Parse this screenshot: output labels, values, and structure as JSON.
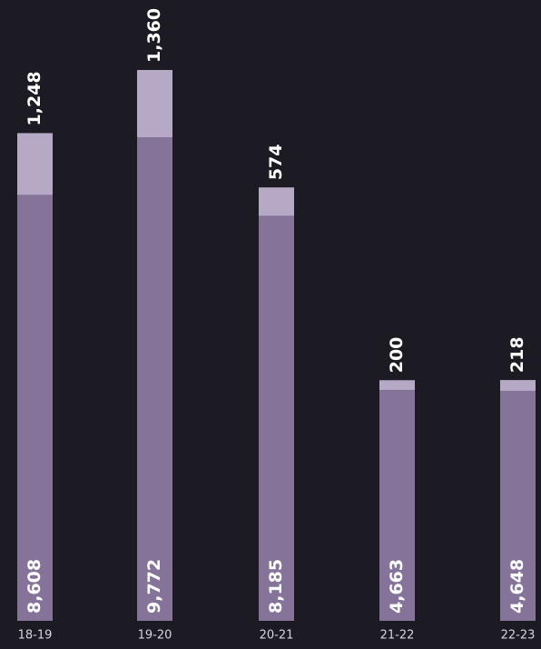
{
  "chart_data": {
    "type": "stacked-bar",
    "categories": [
      "18-19",
      "19-20",
      "20-21",
      "21-22",
      "22-23"
    ],
    "series": [
      {
        "color": "#85739a",
        "values": [
          8608,
          9772,
          8185,
          4663,
          4648
        ],
        "value_labels": [
          "8,608",
          "9,772",
          "8,185",
          "4,663",
          "4,648"
        ]
      },
      {
        "color": "#b6a9c6",
        "values": [
          1248,
          1360,
          574,
          200,
          218
        ],
        "value_labels": [
          "1,248",
          "1,360",
          "574",
          "200",
          "218"
        ]
      }
    ]
  }
}
